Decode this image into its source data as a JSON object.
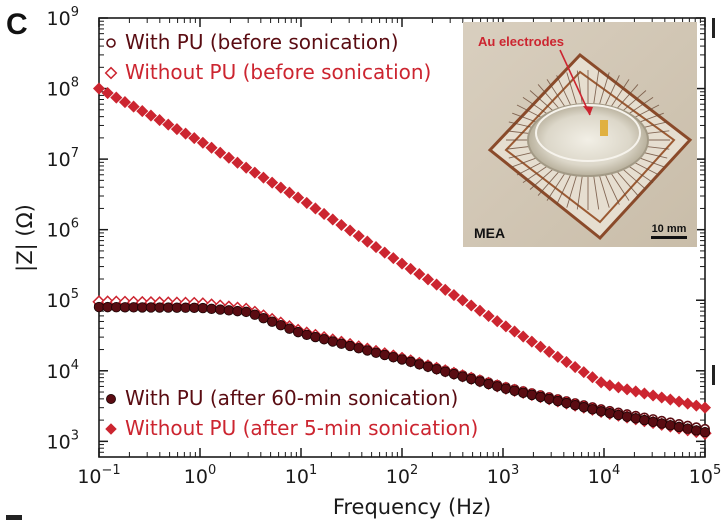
{
  "panel_letter": "C",
  "colors": {
    "with_pu": "#5a0c12",
    "without_pu": "#cc2530",
    "axis": "#1a1a1a"
  },
  "chart_data": {
    "type": "scatter",
    "xlabel": "Frequency (Hz)",
    "ylabel": "|Z| (Ω)",
    "x_scale": "log",
    "y_scale": "log",
    "xlim": [
      0.1,
      100000
    ],
    "ylim": [
      600,
      1000000000
    ],
    "x_ticks": [
      {
        "value": 0.1,
        "base": "10",
        "exp": "−1"
      },
      {
        "value": 1,
        "base": "10",
        "exp": "0"
      },
      {
        "value": 10,
        "base": "10",
        "exp": "1"
      },
      {
        "value": 100,
        "base": "10",
        "exp": "2"
      },
      {
        "value": 1000,
        "base": "10",
        "exp": "3"
      },
      {
        "value": 10000,
        "base": "10",
        "exp": "4"
      },
      {
        "value": 100000,
        "base": "10",
        "exp": "5"
      }
    ],
    "y_ticks": [
      {
        "value": 1000,
        "base": "10",
        "exp": "3"
      },
      {
        "value": 10000,
        "base": "10",
        "exp": "4"
      },
      {
        "value": 100000,
        "base": "10",
        "exp": "5"
      },
      {
        "value": 1000000,
        "base": "10",
        "exp": "6"
      },
      {
        "value": 10000000,
        "base": "10",
        "exp": "7"
      },
      {
        "value": 100000000,
        "base": "10",
        "exp": "8"
      },
      {
        "value": 1000000000,
        "base": "10",
        "exp": "9"
      }
    ],
    "grid": false,
    "points_per_series": 71,
    "series": [
      {
        "name": "With PU (before sonication)",
        "marker": "open-circle",
        "color": "#5a0c12",
        "knots": [
          [
            0.1,
            85000
          ],
          [
            1,
            82000
          ],
          [
            3,
            70000
          ],
          [
            10,
            35000
          ],
          [
            100,
            15000
          ],
          [
            1000,
            6000
          ],
          [
            10000,
            2800
          ],
          [
            100000,
            1500
          ]
        ]
      },
      {
        "name": "Without PU (before sonication)",
        "marker": "open-diamond",
        "color": "#cc2530",
        "knots": [
          [
            0.1,
            95000
          ],
          [
            1,
            90000
          ],
          [
            3,
            74000
          ],
          [
            10,
            36000
          ],
          [
            100,
            15000
          ],
          [
            1000,
            5800
          ],
          [
            10000,
            2600
          ],
          [
            100000,
            1300
          ]
        ]
      },
      {
        "name": "With PU (after 60-min sonication)",
        "marker": "filled-circle",
        "color": "#5a0c12",
        "knots": [
          [
            0.1,
            80000
          ],
          [
            1,
            78000
          ],
          [
            3,
            68000
          ],
          [
            10,
            34000
          ],
          [
            100,
            14500
          ],
          [
            1000,
            5700
          ],
          [
            10000,
            2600
          ],
          [
            100000,
            1350
          ]
        ]
      },
      {
        "name": "Without PU (after 5-min sonication)",
        "marker": "filled-diamond",
        "color": "#cc2530",
        "knots": [
          [
            0.1,
            100000000
          ],
          [
            1,
            18000000
          ],
          [
            10,
            2700000
          ],
          [
            100,
            330000
          ],
          [
            1000,
            45000
          ],
          [
            10000,
            6500
          ],
          [
            100000,
            3000
          ]
        ]
      }
    ]
  },
  "legend_top": [
    {
      "label": "With PU (before sonication)",
      "marker": "open-circle",
      "color": "#5a0c12"
    },
    {
      "label": "Without PU (before sonication)",
      "marker": "open-diamond",
      "color": "#cc2530"
    }
  ],
  "legend_bottom": [
    {
      "label": "With PU (after 60-min sonication)",
      "marker": "filled-circle",
      "color": "#5a0c12"
    },
    {
      "label": "Without PU (after 5-min sonication)",
      "marker": "filled-diamond",
      "color": "#cc2530"
    }
  ],
  "inset": {
    "annotation": "Au electrodes",
    "label": "MEA",
    "scale_bar": "10 mm"
  }
}
